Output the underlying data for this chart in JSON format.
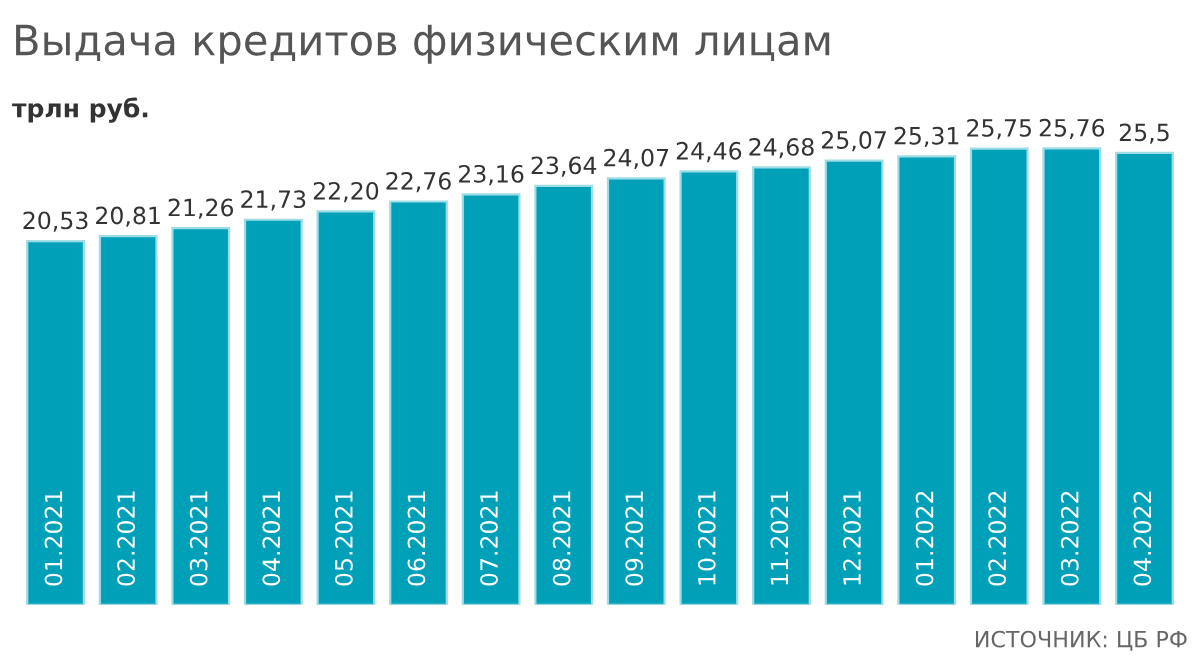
{
  "chart_data": {
    "type": "bar",
    "title": "Выдача кредитов физическим лицам",
    "subtitle": "трлн руб.",
    "categories": [
      "01.2021",
      "02.2021",
      "03.2021",
      "04.2021",
      "05.2021",
      "06.2021",
      "07.2021",
      "08.2021",
      "09.2021",
      "10.2021",
      "11.2021",
      "12.2021",
      "01.2022",
      "02.2022",
      "03.2022",
      "04.2022"
    ],
    "values": [
      20.53,
      20.81,
      21.26,
      21.73,
      22.2,
      22.76,
      23.16,
      23.64,
      24.07,
      24.46,
      24.68,
      25.07,
      25.31,
      25.75,
      25.76,
      25.5
    ],
    "value_labels": [
      "20,53",
      "20,81",
      "21,26",
      "21,73",
      "22,20",
      "22,76",
      "23,16",
      "23,64",
      "24,07",
      "24,46",
      "24,68",
      "25,07",
      "25,31",
      "25,75",
      "25,76",
      "25,5"
    ],
    "color": "#00a0b8",
    "annotations": [
      "ИСТОЧНИК: ЦБ РФ"
    ]
  }
}
